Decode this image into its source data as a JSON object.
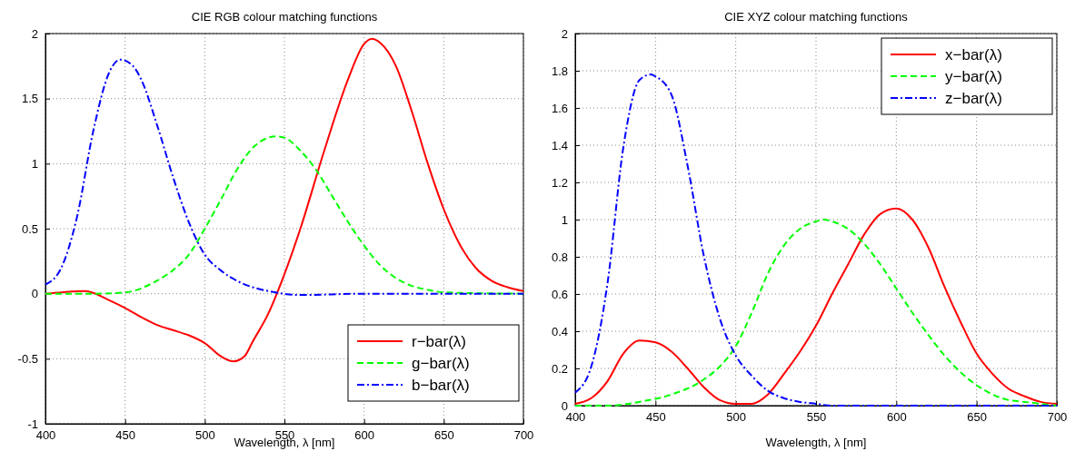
{
  "chart_data": [
    {
      "type": "line",
      "title": "CIE RGB colour matching functions",
      "xlabel": "Wavelength, λ [nm]",
      "xlim": [
        400,
        700
      ],
      "xticks": [
        400,
        450,
        500,
        550,
        600,
        650,
        700
      ],
      "ylim": [
        -1,
        2
      ],
      "yticks": [
        -1,
        -0.5,
        0,
        0.5,
        1,
        1.5,
        2
      ],
      "grid": true,
      "legend": "bottom right",
      "series": [
        {
          "name": "r−bar(λ)",
          "color": "#ff0000",
          "line_style": "solid",
          "x": [
            400,
            410,
            425,
            440,
            450,
            460,
            470,
            480,
            490,
            500,
            510,
            518,
            525,
            530,
            540,
            550,
            560,
            575,
            590,
            600,
            605,
            610,
            620,
            630,
            640,
            650,
            660,
            670,
            680,
            690,
            700
          ],
          "values": [
            0,
            0.01,
            0.02,
            -0.05,
            -0.11,
            -0.18,
            -0.24,
            -0.28,
            -0.32,
            -0.38,
            -0.48,
            -0.52,
            -0.48,
            -0.37,
            -0.15,
            0.15,
            0.5,
            1.1,
            1.65,
            1.92,
            1.96,
            1.93,
            1.75,
            1.4,
            1.0,
            0.65,
            0.38,
            0.2,
            0.1,
            0.05,
            0.02
          ]
        },
        {
          "name": "g−bar(λ)",
          "color": "#00ff00",
          "line_style": "dashed",
          "x": [
            400,
            430,
            450,
            470,
            480,
            490,
            500,
            510,
            520,
            530,
            540,
            545,
            550,
            560,
            570,
            580,
            590,
            600,
            610,
            620,
            630,
            640,
            650,
            700
          ],
          "values": [
            0,
            0,
            0.01,
            0.1,
            0.18,
            0.3,
            0.5,
            0.72,
            0.95,
            1.12,
            1.2,
            1.21,
            1.2,
            1.1,
            0.95,
            0.75,
            0.55,
            0.37,
            0.22,
            0.12,
            0.06,
            0.03,
            0.01,
            0
          ]
        },
        {
          "name": "b−bar(λ)",
          "color": "#0000ff",
          "line_style": "dashdot",
          "x": [
            400,
            410,
            420,
            430,
            440,
            447,
            455,
            460,
            470,
            480,
            490,
            500,
            510,
            520,
            530,
            540,
            560,
            600,
            700
          ],
          "values": [
            0.07,
            0.2,
            0.6,
            1.25,
            1.7,
            1.8,
            1.75,
            1.65,
            1.3,
            0.9,
            0.55,
            0.3,
            0.18,
            0.1,
            0.05,
            0.02,
            -0.01,
            0,
            0
          ]
        }
      ]
    },
    {
      "type": "line",
      "title": "CIE XYZ colour matching functions",
      "xlabel": "Wavelength, λ [nm]",
      "xlim": [
        400,
        700
      ],
      "xticks": [
        400,
        450,
        500,
        550,
        600,
        650,
        700
      ],
      "ylim": [
        0,
        2
      ],
      "yticks": [
        0,
        0.2,
        0.4,
        0.6,
        0.8,
        1,
        1.2,
        1.4,
        1.6,
        1.8,
        2
      ],
      "grid": true,
      "legend": "top right",
      "series": [
        {
          "name": "x−bar(λ)",
          "color": "#ff0000",
          "line_style": "solid",
          "x": [
            400,
            410,
            420,
            430,
            440,
            450,
            460,
            470,
            480,
            490,
            500,
            510,
            520,
            530,
            540,
            550,
            560,
            570,
            580,
            590,
            600,
            610,
            620,
            630,
            640,
            650,
            660,
            670,
            680,
            690,
            700
          ],
          "values": [
            0.01,
            0.04,
            0.13,
            0.28,
            0.35,
            0.34,
            0.29,
            0.2,
            0.1,
            0.03,
            0.01,
            0.01,
            0.06,
            0.17,
            0.29,
            0.43,
            0.6,
            0.76,
            0.92,
            1.03,
            1.06,
            1.0,
            0.85,
            0.64,
            0.45,
            0.28,
            0.17,
            0.09,
            0.05,
            0.02,
            0.01
          ]
        },
        {
          "name": "y−bar(λ)",
          "color": "#00ff00",
          "line_style": "dashed",
          "x": [
            400,
            420,
            440,
            460,
            480,
            490,
            500,
            510,
            520,
            530,
            540,
            550,
            555,
            560,
            570,
            580,
            590,
            600,
            610,
            620,
            630,
            640,
            650,
            660,
            670,
            680,
            690,
            700
          ],
          "values": [
            0,
            0,
            0.02,
            0.06,
            0.14,
            0.21,
            0.32,
            0.5,
            0.71,
            0.86,
            0.95,
            0.99,
            1.0,
            0.99,
            0.95,
            0.87,
            0.76,
            0.63,
            0.5,
            0.38,
            0.27,
            0.18,
            0.11,
            0.06,
            0.03,
            0.02,
            0.01,
            0
          ]
        },
        {
          "name": "z−bar(λ)",
          "color": "#0000ff",
          "line_style": "dashdot",
          "x": [
            400,
            410,
            420,
            430,
            440,
            447,
            450,
            460,
            470,
            480,
            490,
            500,
            510,
            520,
            530,
            540,
            550,
            560,
            580,
            600,
            650,
            700
          ],
          "values": [
            0.07,
            0.21,
            0.65,
            1.39,
            1.75,
            1.78,
            1.77,
            1.67,
            1.29,
            0.81,
            0.47,
            0.27,
            0.16,
            0.08,
            0.04,
            0.02,
            0.01,
            0,
            0,
            0,
            0,
            0
          ]
        }
      ]
    }
  ]
}
